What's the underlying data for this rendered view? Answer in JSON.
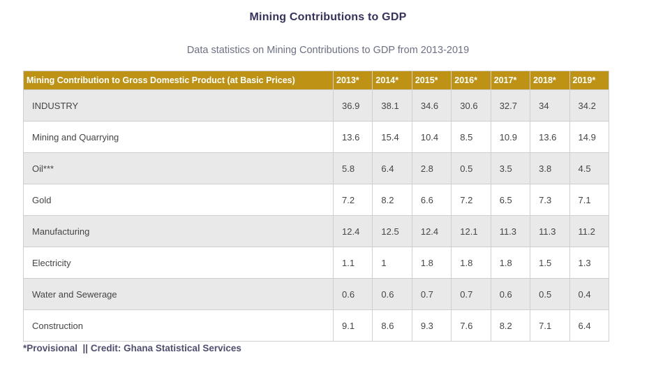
{
  "header": {
    "title": "Mining Contributions to GDP",
    "subtitle": "Data statistics on Mining Contributions to GDP from 2013-2019"
  },
  "chart_data": {
    "type": "table",
    "title": "Mining Contributions to GDP",
    "corner_label": "Mining Contribution to Gross Domestic Product (at Basic Prices)",
    "columns": [
      "2013*",
      "2014*",
      "2015*",
      "2016*",
      "2017*",
      "2018*",
      "2019*"
    ],
    "rows": [
      {
        "label": "INDUSTRY",
        "values": [
          "36.9",
          "38.1",
          "34.6",
          "30.6",
          "32.7",
          "34",
          "34.2"
        ]
      },
      {
        "label": "Mining and Quarrying",
        "values": [
          "13.6",
          "15.4",
          "10.4",
          "8.5",
          "10.9",
          "13.6",
          "14.9"
        ]
      },
      {
        "label": "Oil***",
        "values": [
          "5.8",
          "6.4",
          "2.8",
          "0.5",
          "3.5",
          "3.8",
          "4.5"
        ]
      },
      {
        "label": "Gold",
        "values": [
          "7.2",
          "8.2",
          "6.6",
          "7.2",
          "6.5",
          "7.3",
          "7.1"
        ]
      },
      {
        "label": "Manufacturing",
        "values": [
          "12.4",
          "12.5",
          "12.4",
          "12.1",
          "11.3",
          "11.3",
          "11.2"
        ]
      },
      {
        "label": "Electricity",
        "values": [
          "1.1",
          "1",
          "1.8",
          "1.8",
          "1.8",
          "1.5",
          "1.3"
        ]
      },
      {
        "label": "Water and Sewerage",
        "values": [
          "0.6",
          "0.6",
          "0.7",
          "0.7",
          "0.6",
          "0.5",
          "0.4"
        ]
      },
      {
        "label": "Construction",
        "values": [
          "9.1",
          "8.6",
          "9.3",
          "7.6",
          "8.2",
          "7.1",
          "6.4"
        ]
      }
    ]
  },
  "footer": {
    "note": "*Provisional  || Credit: Ghana Statistical Services"
  },
  "colors": {
    "header_gold": "#be9214",
    "stripe_gray": "#e9e9e9",
    "border": "#cfcfcf",
    "title_navy": "#34325f",
    "subtitle_gray": "#6c7086",
    "footnote_navy": "#4e4e72"
  }
}
